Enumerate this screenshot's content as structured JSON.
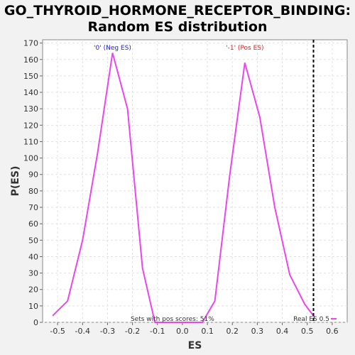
{
  "chart_data": {
    "type": "line",
    "title_line1": "GO_THYROID_HORMONE_RECEPTOR_BINDING:",
    "title_line2": "Random ES distribution",
    "xlabel": "ES",
    "ylabel": "P(ES)",
    "xlim": [
      -0.56,
      0.66
    ],
    "ylim": [
      0,
      172
    ],
    "xticks": [
      -0.5,
      -0.4,
      -0.3,
      -0.2,
      -0.1,
      0.0,
      0.1,
      0.2,
      0.3,
      0.4,
      0.5,
      0.6
    ],
    "xtick_labels": [
      "-0.5",
      "-0.4",
      "-0.3",
      "-0.2",
      "-0.1",
      "0.0",
      "0.1",
      "0.2",
      "0.3",
      "0.4",
      "0.5",
      "0.6"
    ],
    "yticks": [
      0,
      10,
      20,
      30,
      40,
      50,
      60,
      70,
      80,
      90,
      100,
      110,
      120,
      130,
      140,
      150,
      160,
      170
    ],
    "grid": true,
    "series": [
      {
        "color": "#ee44ee",
        "x": [
          -0.52,
          -0.46,
          -0.4,
          -0.34,
          -0.28,
          -0.22,
          -0.16,
          -0.11,
          -0.05,
          0.0,
          0.02,
          0.08,
          0.13,
          0.19,
          0.25,
          0.31,
          0.37,
          0.43,
          0.49,
          0.53
        ],
        "y": [
          4,
          13,
          50,
          103,
          164,
          130,
          33,
          0,
          0,
          0,
          0,
          0,
          13,
          90,
          158,
          125,
          70,
          29,
          11,
          3
        ]
      }
    ],
    "real_es": 0.525,
    "annotations": {
      "neg_label": "'0' (Neg ES)",
      "neg_color": "#2222cc",
      "pos_label": "'-1' (Pos ES)",
      "pos_color": "#dd2222",
      "sets_text": "Sets with pos scores: 51%",
      "real_es_text": "Real ES 0.5"
    }
  }
}
